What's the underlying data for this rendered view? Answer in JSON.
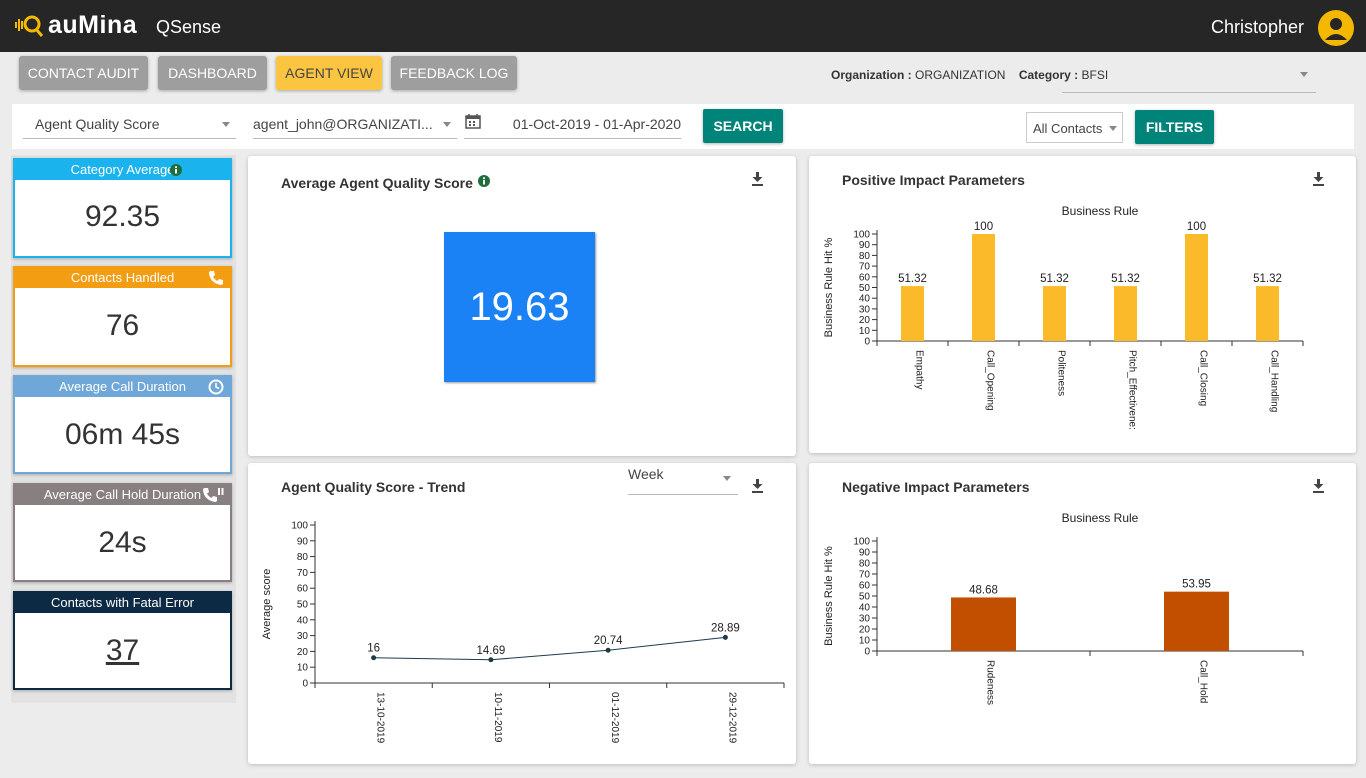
{
  "app": {
    "brand": "auMina",
    "product": "QSense",
    "user": "Christopher"
  },
  "nav": [
    {
      "label": "CONTACT AUDIT",
      "active": false
    },
    {
      "label": "DASHBOARD",
      "active": false
    },
    {
      "label": "AGENT VIEW",
      "active": true
    },
    {
      "label": "FEEDBACK LOG",
      "active": false
    }
  ],
  "org": {
    "org_label": "Organization :",
    "org_value": "ORGANIZATION",
    "cat_label": "Category :",
    "cat_value": "BFSI"
  },
  "filters": {
    "metric": "Agent Quality Score",
    "agent": "agent_john@ORGANIZATI...",
    "date_range": "01-Oct-2019 - 01-Apr-2020",
    "search_label": "SEARCH",
    "contacts": "All Contacts",
    "filters_label": "FILTERS"
  },
  "kpis": [
    {
      "label": "Category Average",
      "value": "92.35",
      "color": "#1ab3ee",
      "icon": "info-icon"
    },
    {
      "label": "Contacts Handled",
      "value": "76",
      "color": "#f29d12",
      "icon": "phone-icon"
    },
    {
      "label": "Average Call Duration",
      "value": "06m 45s",
      "color": "#6fa8d8",
      "icon": "clock-icon"
    },
    {
      "label": "Average Call Hold Duration",
      "value": "24s",
      "color": "#888080",
      "icon": "phone-hold-icon"
    },
    {
      "label": "Contacts with Fatal Error",
      "value": "37",
      "color": "#0d2a44",
      "icon": ""
    }
  ],
  "panels": {
    "avg_score": {
      "title": "Average Agent Quality Score",
      "value": "19.63"
    },
    "trend": {
      "title": "Agent Quality Score - Trend",
      "period": "Week"
    },
    "positive": {
      "title": "Positive Impact Parameters"
    },
    "negative": {
      "title": "Negative Impact Parameters"
    }
  },
  "chart_data": [
    {
      "type": "bar",
      "title": "Business Rule",
      "ylabel": "Business Rule Hit %",
      "categories": [
        "Empathy",
        "Call_Opening",
        "Politeness",
        "Pitch_Effectivene:",
        "Call_Closing",
        "Call_Handling"
      ],
      "values": [
        51.32,
        100,
        51.32,
        51.32,
        100,
        51.32
      ],
      "value_labels": [
        "51.32",
        "100",
        "51.32",
        "51.32",
        "100",
        "51.32"
      ],
      "ylim": [
        0,
        100
      ],
      "yticks": [
        0,
        10,
        20,
        30,
        40,
        50,
        60,
        70,
        80,
        90,
        100
      ],
      "color": "#fbba2a"
    },
    {
      "type": "bar",
      "title": "Business Rule",
      "ylabel": "Business Rule Hit %",
      "categories": [
        "Rudeness",
        "Call_Hold"
      ],
      "values": [
        48.68,
        53.95
      ],
      "value_labels": [
        "48.68",
        "53.95"
      ],
      "ylim": [
        0,
        100
      ],
      "yticks": [
        0,
        10,
        20,
        30,
        40,
        50,
        60,
        70,
        80,
        90,
        100
      ],
      "color": "#c24e00"
    },
    {
      "type": "line",
      "ylabel": "Average score",
      "categories": [
        "13-10-2019",
        "10-11-2019",
        "01-12-2019",
        "29-12-2019"
      ],
      "values": [
        16,
        14.69,
        20.74,
        28.89
      ],
      "value_labels": [
        "16",
        "14.69",
        "20.74",
        "28.89"
      ],
      "ylim": [
        0,
        100
      ],
      "yticks": [
        0,
        10,
        20,
        30,
        40,
        50,
        60,
        70,
        80,
        90,
        100
      ],
      "color": "#1d3a4a"
    }
  ]
}
